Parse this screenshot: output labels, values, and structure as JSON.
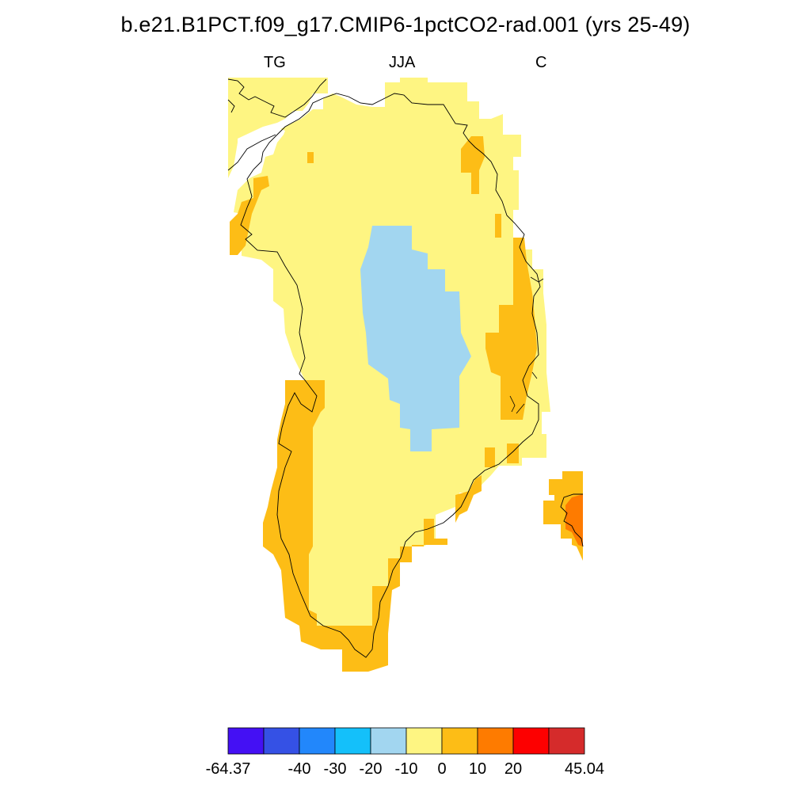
{
  "title": "b.e21.B1PCT.f09_g17.CMIP6-1pctCO2-rad.001 (yrs 25-49)",
  "subtitle_left": "TG",
  "subtitle_center": "JJA",
  "subtitle_right": "C",
  "colorbar": {
    "colors": [
      "#4410F4",
      "#3551E5",
      "#2287FB",
      "#14C0FA",
      "#A2D6F0",
      "#FEF582",
      "#FDBD16",
      "#FE7B00",
      "#FD0000",
      "#D52B2B"
    ],
    "labels": [
      "-64.37",
      "-40",
      "-30",
      "-20",
      "-10",
      "0",
      "10",
      "20",
      "45.04"
    ],
    "label_edges": [
      0,
      2,
      3,
      4,
      5,
      6,
      7,
      8,
      10
    ]
  },
  "map_colors": {
    "zero_to_ten": "#FEF582",
    "ten_to_twenty": "#FDBD16",
    "twenty_up": "#FE7B00",
    "minus_ten_to_zero": "#A2D6F0",
    "coastline": "#000000"
  }
}
